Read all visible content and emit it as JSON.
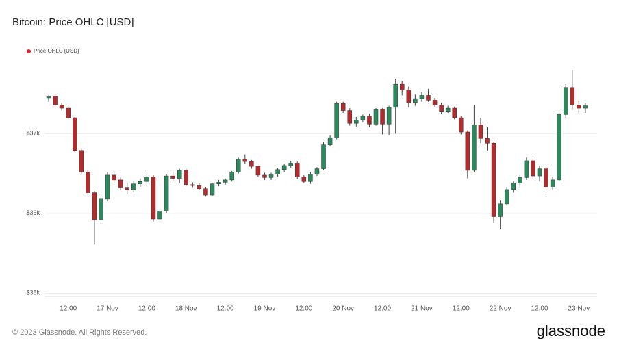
{
  "chart_data": {
    "type": "candlestick",
    "title": "Bitcoin: Price OHLC [USD]",
    "footer": "© 2023 Glassnode. All Rights Reserved.",
    "brand": "glassnode",
    "categories": [
      null,
      null,
      null,
      "12:00",
      null,
      null,
      null,
      null,
      null,
      "17 Nov",
      null,
      null,
      null,
      null,
      null,
      "12:00",
      null,
      null,
      null,
      null,
      null,
      "18 Nov",
      null,
      null,
      null,
      null,
      null,
      "12:00",
      null,
      null,
      null,
      null,
      null,
      "19 Nov",
      null,
      null,
      null,
      null,
      null,
      "12:00",
      null,
      null,
      null,
      null,
      null,
      "20 Nov",
      null,
      null,
      null,
      null,
      null,
      "12:00",
      null,
      null,
      null,
      null,
      null,
      "21 Nov",
      null,
      null,
      null,
      null,
      null,
      "12:00",
      null,
      null,
      null,
      null,
      null,
      "22 Nov",
      null,
      null,
      null,
      null,
      null,
      "12:00",
      null,
      null,
      null,
      null,
      null,
      "23 Nov",
      null
    ],
    "series": [
      {
        "name": "Price OHLC [USD]",
        "color": "#e0202a",
        "up_color": "#2b8a5c",
        "down_color": "#b52a2a",
        "open": [
          37450,
          37470,
          37360,
          37320,
          37200,
          36790,
          36520,
          36260,
          35920,
          36180,
          36480,
          36420,
          36320,
          36300,
          36370,
          36400,
          36460,
          35930,
          36030,
          36470,
          36440,
          36540,
          36360,
          36350,
          36310,
          36230,
          36370,
          36390,
          36420,
          36520,
          36680,
          36650,
          36590,
          36480,
          36450,
          36490,
          36550,
          36600,
          36630,
          36460,
          36400,
          36490,
          36560,
          36860,
          36950,
          37380,
          37290,
          37130,
          37170,
          37220,
          37120,
          37300,
          37120,
          37330,
          37620,
          37550,
          37390,
          37440,
          37480,
          37420,
          37360,
          37280,
          37320,
          37200,
          37020,
          36540,
          37110,
          36940,
          36880,
          35960,
          36120,
          36300,
          36380,
          36450,
          36660,
          36470,
          36560,
          36330,
          36420,
          37240,
          37580,
          37360,
          37320
        ],
        "high": [
          37480,
          37490,
          37390,
          37350,
          37210,
          36810,
          36540,
          36280,
          36210,
          36520,
          36530,
          36450,
          36380,
          36400,
          36440,
          36490,
          36480,
          36060,
          36490,
          36520,
          36560,
          36560,
          36390,
          36380,
          36330,
          36380,
          36420,
          36440,
          36530,
          36700,
          36740,
          36670,
          36600,
          36510,
          36510,
          36570,
          36620,
          36660,
          36650,
          36480,
          36520,
          36580,
          36900,
          36980,
          37400,
          37400,
          37320,
          37210,
          37240,
          37250,
          37320,
          37320,
          37350,
          37690,
          37660,
          37590,
          37490,
          37520,
          37560,
          37450,
          37390,
          37350,
          37340,
          37220,
          37040,
          37360,
          37200,
          37080,
          36900,
          36160,
          36330,
          36400,
          36480,
          36700,
          36690,
          36600,
          36580,
          36460,
          37280,
          37620,
          37800,
          37430,
          37380
        ],
        "low": [
          37400,
          37330,
          37290,
          37180,
          36770,
          36500,
          36230,
          35610,
          35870,
          36150,
          36380,
          36290,
          36240,
          36270,
          36330,
          36340,
          35900,
          35900,
          36000,
          36400,
          36380,
          36340,
          36320,
          36290,
          36210,
          36220,
          36340,
          36360,
          36400,
          36500,
          36620,
          36560,
          36460,
          36420,
          36420,
          36460,
          36520,
          36570,
          36430,
          36380,
          36370,
          36470,
          36540,
          36840,
          36930,
          37260,
          37100,
          37090,
          37140,
          37080,
          37100,
          36990,
          36980,
          37000,
          37480,
          37330,
          37350,
          37400,
          37400,
          37330,
          37250,
          37260,
          37180,
          36990,
          36440,
          36520,
          36880,
          36790,
          35880,
          35800,
          36100,
          36260,
          36340,
          36420,
          36430,
          36400,
          36250,
          36300,
          36400,
          37200,
          37300,
          37250,
          37260
        ],
        "close": [
          37470,
          37360,
          37320,
          37200,
          36790,
          36520,
          36260,
          35920,
          36180,
          36480,
          36420,
          36320,
          36300,
          36370,
          36400,
          36460,
          35930,
          36030,
          36470,
          36440,
          36540,
          36360,
          36350,
          36310,
          36230,
          36370,
          36390,
          36420,
          36520,
          36680,
          36650,
          36590,
          36480,
          36450,
          36490,
          36550,
          36600,
          36630,
          36460,
          36400,
          36490,
          36560,
          36860,
          36950,
          37380,
          37290,
          37130,
          37170,
          37220,
          37120,
          37300,
          37120,
          37330,
          37620,
          37550,
          37390,
          37440,
          37480,
          37420,
          37360,
          37280,
          37320,
          37200,
          37020,
          36540,
          37110,
          36940,
          36880,
          35960,
          36120,
          36300,
          36380,
          36450,
          36660,
          36470,
          36560,
          36330,
          36420,
          37240,
          37580,
          37360,
          37320,
          37350
        ]
      }
    ],
    "ylim": [
      34960,
      37990
    ],
    "yticks": [
      {
        "value": 35000,
        "label": "$35k"
      },
      {
        "value": 36000,
        "label": "$36k"
      },
      {
        "value": 37000,
        "label": "$37k"
      }
    ],
    "grid": true,
    "legend": "top-left"
  }
}
